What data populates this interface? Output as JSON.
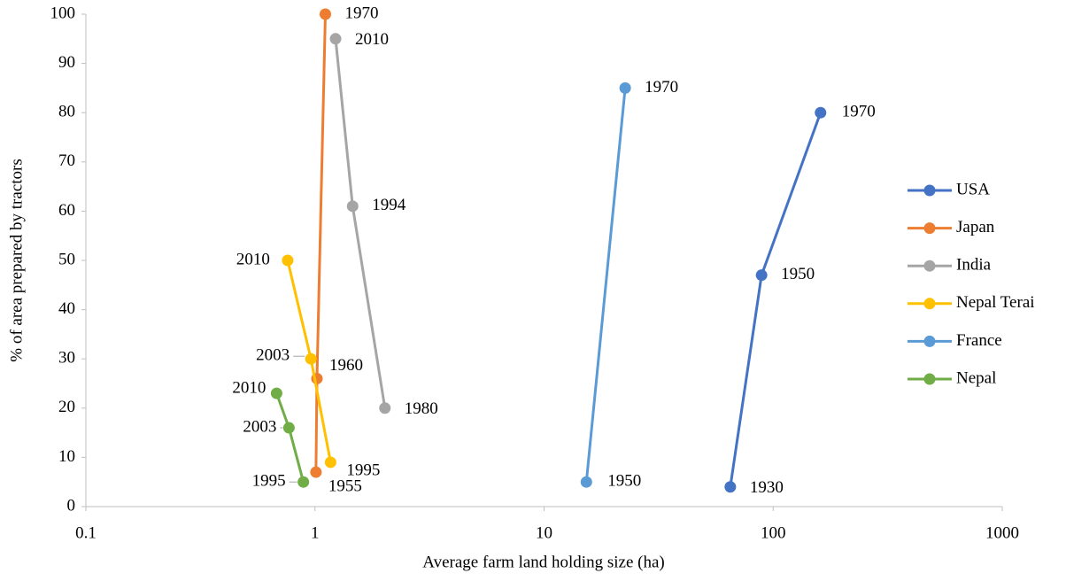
{
  "chart_data": {
    "type": "line",
    "xlabel": "Average farm land holding size (ha)",
    "ylabel": "% of area prepared by tractors",
    "xscale": "log",
    "xlim": [
      0.1,
      1000
    ],
    "xticks": [
      0.1,
      1,
      10,
      100,
      1000
    ],
    "ylim": [
      0,
      100
    ],
    "yticks": [
      0,
      10,
      20,
      30,
      40,
      50,
      60,
      70,
      80,
      90,
      100
    ],
    "grid": false,
    "legend": "right",
    "series": [
      {
        "name": "USA",
        "color": "#4472c4",
        "x": [
          65,
          89,
          161
        ],
        "values": [
          4,
          47,
          80
        ],
        "labels": [
          "1930",
          "1950",
          "1970"
        ]
      },
      {
        "name": "Japan",
        "color": "#ed7d31",
        "x": [
          1.01,
          1.02,
          1.11
        ],
        "values": [
          7,
          26,
          100
        ],
        "labels": [
          "1955",
          "1960",
          "1970"
        ]
      },
      {
        "name": "India",
        "color": "#a5a5a5",
        "x": [
          1.23,
          1.46,
          2.02
        ],
        "values": [
          95,
          61,
          20
        ],
        "labels": [
          "2010",
          "1994",
          "1980"
        ]
      },
      {
        "name": "Nepal Terai",
        "color": "#ffc000",
        "x": [
          0.76,
          0.96,
          1.17
        ],
        "values": [
          50,
          30,
          9
        ],
        "labels": [
          "2010",
          "2003",
          "1995"
        ]
      },
      {
        "name": "France",
        "color": "#5b9bd5",
        "x": [
          15.3,
          22.6
        ],
        "values": [
          5,
          85
        ],
        "labels": [
          "1950",
          "1970"
        ]
      },
      {
        "name": "Nepal",
        "color": "#70ad47",
        "x": [
          0.68,
          0.77,
          0.89
        ],
        "values": [
          23,
          16,
          5
        ],
        "labels": [
          "2010",
          "2003",
          "1995"
        ]
      }
    ]
  }
}
